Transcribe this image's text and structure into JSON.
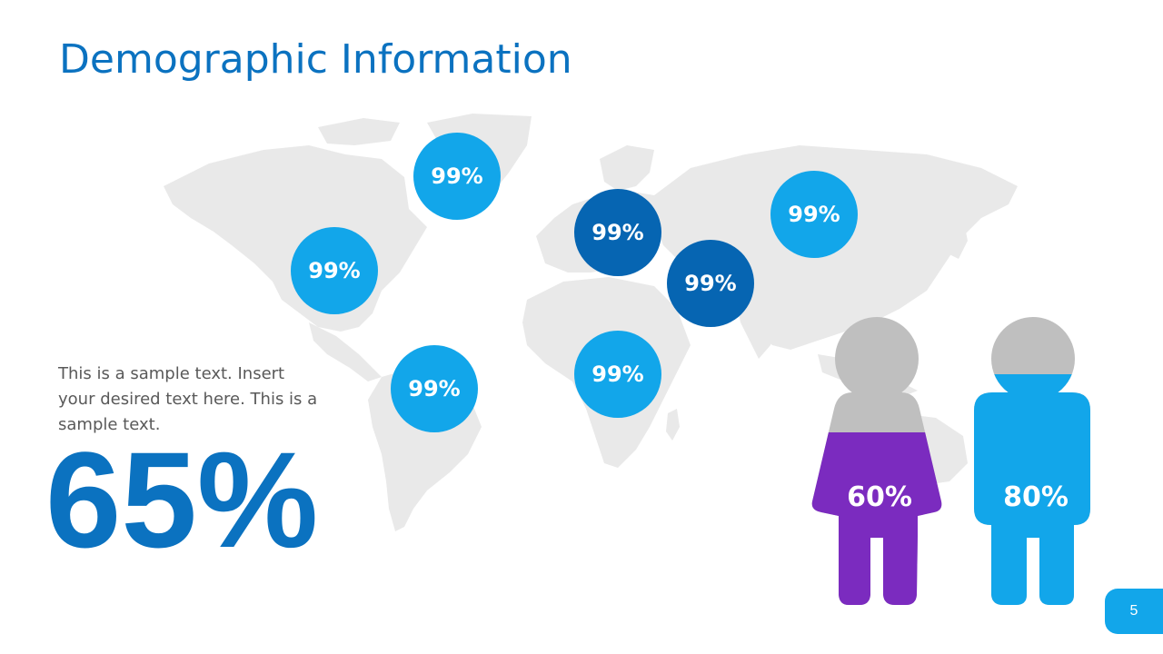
{
  "slide": {
    "title": "Demographic Information",
    "description": "This is a sample text. Insert your desired text here. This is a sample text.",
    "big_stat": "65%",
    "page_number": "5"
  },
  "regions": [
    {
      "id": "north-america-north",
      "value": "99%",
      "tone": "light"
    },
    {
      "id": "north-america-south",
      "value": "99%",
      "tone": "light"
    },
    {
      "id": "south-america",
      "value": "99%",
      "tone": "light"
    },
    {
      "id": "europe",
      "value": "99%",
      "tone": "dark"
    },
    {
      "id": "middle-east",
      "value": "99%",
      "tone": "dark"
    },
    {
      "id": "africa",
      "value": "99%",
      "tone": "light"
    },
    {
      "id": "asia",
      "value": "99%",
      "tone": "light"
    }
  ],
  "figures": {
    "female": {
      "label": "60%",
      "fill_fraction": 0.6,
      "color": "#7b2bbf"
    },
    "male": {
      "label": "80%",
      "fill_fraction": 0.8,
      "color": "#12a6ea"
    }
  },
  "colors": {
    "accent_blue": "#0b72c0",
    "bubble_light": "#12a6ea",
    "bubble_dark": "#0665b2",
    "figure_empty": "#bfbfbf",
    "map": "#e8e8e8"
  }
}
